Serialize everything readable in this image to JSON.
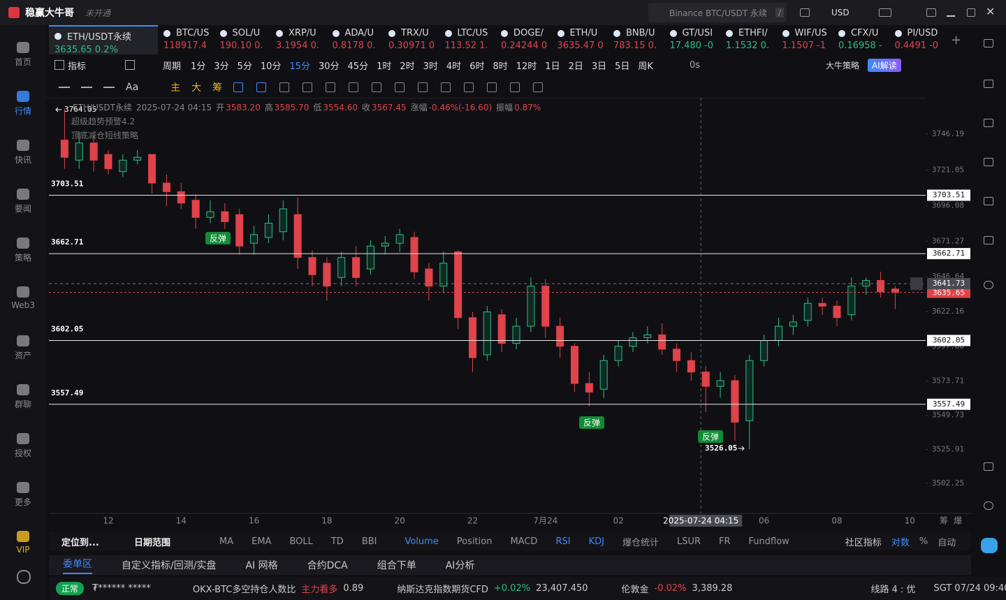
{
  "app": {
    "name": "稳赢大牛哥",
    "badge": "未开通",
    "search": "Binance BTC/USDT 永续",
    "search_key": "/",
    "currency": "USD"
  },
  "sidebar": {
    "items": [
      "首页",
      "行情",
      "快讯",
      "要闻",
      "策略",
      "Web3",
      "资产",
      "群聊",
      "授权",
      "更多",
      "VIP"
    ],
    "active": 1
  },
  "tickers": [
    {
      "name": "ETH/USDT永续",
      "quote": "3635.65  0.2%",
      "color": "#2ebd85"
    },
    {
      "name": "BTC/US",
      "quote": "118917.4",
      "color": "#e0434a"
    },
    {
      "name": "SOL/U",
      "quote": "190.10 0.",
      "color": "#e0434a"
    },
    {
      "name": "XRP/U",
      "quote": "3.1954 0.",
      "color": "#e0434a"
    },
    {
      "name": "ADA/U",
      "quote": "0.8178 0.",
      "color": "#e0434a"
    },
    {
      "name": "TRX/U",
      "quote": "0.30971 0",
      "color": "#e0434a"
    },
    {
      "name": "LTC/US",
      "quote": "113.52 1.",
      "color": "#e0434a"
    },
    {
      "name": "DOGE/",
      "quote": "0.24244 0",
      "color": "#e0434a"
    },
    {
      "name": "ETH/U",
      "quote": "3635.47 0",
      "color": "#e0434a"
    },
    {
      "name": "BNB/U",
      "quote": "783.15 0.",
      "color": "#e0434a"
    },
    {
      "name": "GT/USI",
      "quote": "17.480 -0",
      "color": "#2ebd85"
    },
    {
      "name": "ETHFI/",
      "quote": "1.1532 0.",
      "color": "#2ebd85"
    },
    {
      "name": "WIF/US",
      "quote": "1.1507 -1",
      "color": "#e0434a"
    },
    {
      "name": "CFX/U",
      "quote": "0.16958 -",
      "color": "#2ebd85"
    },
    {
      "name": "PI/USD",
      "quote": "0.4491 -0",
      "color": "#e0434a"
    }
  ],
  "toolbar": {
    "indicator": "指标",
    "period": "周期",
    "intervals": [
      "1分",
      "3分",
      "5分",
      "10分",
      "15分",
      "30分",
      "45分",
      "1时",
      "2时",
      "3时",
      "4时",
      "6时",
      "8时",
      "12时",
      "1日",
      "2日",
      "3日",
      "5日",
      "周K"
    ],
    "active": 4,
    "countdown": "0s",
    "strategy": "大牛策略",
    "ai": "AI解读"
  },
  "drawbar": {
    "font": "Aa",
    "marks": [
      "主",
      "大",
      "筹"
    ]
  },
  "legend": {
    "symbol": "ETH/USDT永续",
    "time": "2025-07-24 04:15",
    "fields": [
      {
        "label": "开",
        "value": "3583.20"
      },
      {
        "label": "高",
        "value": "3585.70"
      },
      {
        "label": "低",
        "value": "3554.60"
      },
      {
        "label": "收",
        "value": "3567.45"
      },
      {
        "label": "涨幅",
        "value": "-0.46%(-16.60)"
      },
      {
        "label": "振幅",
        "value": "0.87%"
      }
    ],
    "indicators": [
      "超级趋势预警4.2",
      "顶底减仓短线策略"
    ]
  },
  "chart_data": {
    "type": "candlestick",
    "up_color": "#2ebd85",
    "down_color": "#e0434a",
    "categories": [
      null,
      null,
      null,
      "12",
      null,
      null,
      null,
      null,
      "14",
      null,
      null,
      null,
      null,
      "16",
      null,
      null,
      null,
      null,
      "18",
      null,
      null,
      null,
      null,
      "20",
      null,
      null,
      null,
      null,
      "22",
      null,
      null,
      null,
      null,
      "7月24",
      null,
      null,
      null,
      null,
      "02",
      null,
      null,
      null,
      null,
      null,
      "2025-07-24 04:15",
      null,
      null,
      null,
      "06",
      null,
      null,
      null,
      null,
      "08",
      null,
      null,
      null,
      null,
      "10"
    ],
    "open": [
      3742,
      3728,
      3740,
      3732,
      3720,
      3728,
      3732,
      3712,
      3706,
      3700,
      3688,
      3692,
      3690,
      3670,
      3674,
      3678,
      3690,
      3660,
      3656,
      3646,
      3660,
      3652,
      3668,
      3670,
      3674,
      3652,
      3640,
      3664,
      3618,
      3592,
      3620,
      3600,
      3612,
      3640,
      3612,
      3598,
      3572,
      3568,
      3588,
      3598,
      3604,
      3606,
      3596,
      3588,
      3580,
      3570,
      3574,
      3546,
      3588,
      3602,
      3612,
      3616,
      3628,
      3626,
      3620,
      3640,
      3644,
      3638,
      null
    ],
    "high": [
      3764.05,
      3748,
      3745,
      3735,
      3732,
      3735,
      3732,
      3718,
      3712,
      3704,
      3700,
      3698,
      3694,
      3682,
      3690,
      3700,
      3702,
      3665,
      3660,
      3664,
      3668,
      3672,
      3675,
      3680,
      3678,
      3656,
      3664,
      3665,
      3622,
      3626,
      3624,
      3618,
      3646,
      3645,
      3618,
      3600,
      3580,
      3592,
      3602,
      3608,
      3612,
      3614,
      3600,
      3594,
      3584,
      3580,
      3578,
      3592,
      3606,
      3618,
      3620,
      3632,
      3632,
      3630,
      3646,
      3646,
      3650,
      3640,
      null
    ],
    "low": [
      3722,
      3722,
      3720,
      3718,
      3716,
      3725,
      3705,
      3696,
      3694,
      3680,
      3684,
      3680,
      3662,
      3662,
      3670,
      3672,
      3652,
      3640,
      3630,
      3640,
      3640,
      3648,
      3662,
      3664,
      3645,
      3630,
      3635,
      3610,
      3580,
      3588,
      3594,
      3596,
      3608,
      3604,
      3590,
      3566,
      3556,
      3562,
      3584,
      3594,
      3600,
      3592,
      3580,
      3574,
      3552,
      3562,
      3532,
      3526.05,
      3584,
      3598,
      3606,
      3612,
      3620,
      3612,
      3616,
      3634,
      3632,
      3624,
      null
    ],
    "close": [
      3730,
      3740,
      3728,
      3722,
      3728,
      3730,
      3712,
      3706,
      3698,
      3688,
      3692,
      3685,
      3668,
      3676,
      3684,
      3694,
      3660,
      3648,
      3640,
      3660,
      3646,
      3668,
      3670,
      3676,
      3650,
      3640,
      3656,
      3618,
      3590,
      3622,
      3600,
      3612,
      3640,
      3612,
      3598,
      3572,
      3566,
      3588,
      3598,
      3604,
      3606,
      3596,
      3588,
      3580,
      3570,
      3574,
      3545,
      3588,
      3602,
      3612,
      3615,
      3628,
      3626,
      3618,
      3640,
      3644,
      3636,
      3635.65,
      null
    ],
    "ylim": [
      3481.27,
      3771.56
    ],
    "yticks": [
      3746.19,
      3721.05,
      3696.08,
      3671.27,
      3646.64,
      3622.16,
      {
        "value": 3597.8,
        "label": "3597.80"
      },
      3573.71,
      3549.73,
      3525.91,
      3502.25
    ],
    "levels": [
      3703.51,
      3662.71,
      3602.05,
      3557.49
    ],
    "crosshair_price": 3641.73,
    "last_price": 3635.65,
    "annotations": [
      "反弹",
      "反弹",
      "反弹"
    ],
    "corner": [
      "筹",
      "爆"
    ]
  },
  "indicator_tabs": {
    "locate": "定位到...",
    "range": "日期范围",
    "items": [
      "MA",
      "EMA",
      "BOLL",
      "TD",
      "BBI",
      "Volume",
      "Position",
      "MACD",
      "RSI",
      "KDJ",
      "爆仓统计",
      "LSUR",
      "FR",
      "Fundflow"
    ],
    "active": [
      5,
      8,
      9
    ],
    "community": "社区指标",
    "options": [
      "对数",
      "%",
      "自动"
    ]
  },
  "bottom_tabs": {
    "items": [
      "委单区",
      "自定义指标/回测/实盘",
      "AI 网格",
      "合约DCA",
      "组合下单",
      "AI分析"
    ],
    "active": 0
  },
  "status": {
    "state": "正常",
    "account": "₮****** *****",
    "news": [
      {
        "name": "OKX-BTC多空持仓人数比",
        "tag": "主力看多",
        "value": "0.89"
      },
      {
        "name": "纳斯达克指数期货CFD",
        "tag": "+0.02%",
        "value": "23,407.450"
      },
      {
        "name": "伦敦金",
        "tag": "-0.02%",
        "value": "3,389.28"
      }
    ],
    "line": "线路 4 : 优",
    "clock": "SGT 07/24 09:40:34"
  }
}
